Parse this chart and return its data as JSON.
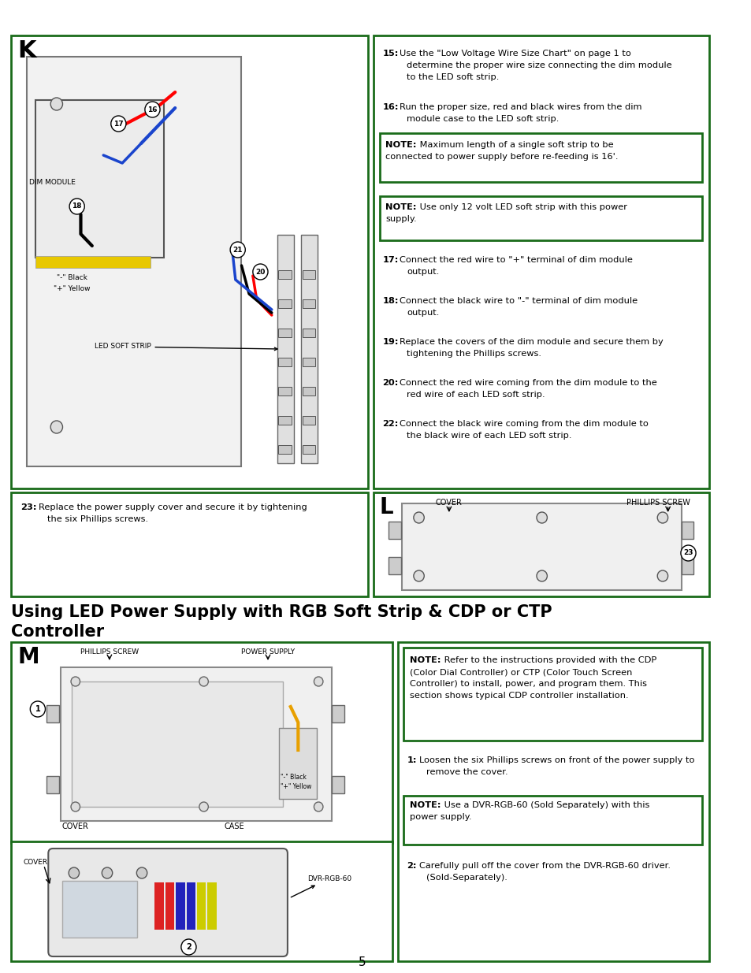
{
  "page_bg": "#ffffff",
  "border_color": "#1a6b1a",
  "text_color": "#000000",
  "page_number": "5",
  "section_k_label": "K",
  "section_l_label": "L",
  "section_m_label": "M",
  "heading_line1": "Using LED Power Supply with RGB Soft Strip & CDP or CTP",
  "heading_line2": "Controller",
  "label_led_soft_strip": "LED SOFT STRIP",
  "label_dim_module": "DIM MODULE",
  "label_minus_black": "\"-\" Black",
  "label_plus_yellow": "\"+\" Yellow",
  "label_power_supply": "POWER SUPPLY",
  "label_phillips_screw": "PHILLIPS SCREW",
  "label_cover": "COVER",
  "label_case": "CASE",
  "label_dvr_rgb60": "DVR-RGB-60"
}
